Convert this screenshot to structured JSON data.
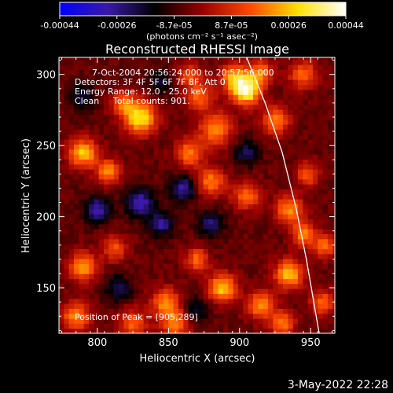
{
  "chart_data": {
    "type": "heatmap",
    "title": "Reconstructed RHESSI Image",
    "xlabel": "Heliocentric X (arcsec)",
    "ylabel": "Heliocentric Y (arcsec)",
    "xlim": [
      773,
      967
    ],
    "ylim": [
      118,
      312
    ],
    "x_ticks": [
      "800",
      "850",
      "900",
      "950"
    ],
    "y_ticks": [
      "150",
      "200",
      "250",
      "300"
    ],
    "colorbar": {
      "ticks": [
        "-0.00044",
        "-0.00026",
        "-8.7e-05",
        "8.7e-05",
        "0.00026",
        "0.00044"
      ],
      "unit": "(photons cm⁻² s⁻¹ asec⁻²)",
      "range": [
        -0.00044,
        0.00044
      ],
      "stops": [
        "#0000ff",
        "#3a1aa8",
        "#000000",
        "#9a0000",
        "#ff4a00",
        "#ffe000",
        "#ffffff"
      ]
    },
    "annotations": {
      "time": "7-Oct-2004 20:56:24.000 to 20:57:56.000",
      "detectors": "Detectors: 3F 4F 5F 6F 7F 8F, Att 0",
      "energy": "Energy Range: 12.0 - 25.0 keV",
      "algorithm": "Clean",
      "counts": "Total counts: 901.",
      "peak": "Position of Peak = [905,289]"
    },
    "peak": {
      "x": 905,
      "y": 289
    },
    "limb": [
      [
        905,
        312
      ],
      [
        918,
        280
      ],
      [
        930,
        245
      ],
      [
        940,
        205
      ],
      [
        947,
        170
      ],
      [
        953,
        135
      ],
      [
        956,
        118
      ]
    ],
    "sources": [
      {
        "x": 905,
        "y": 289,
        "amp": 1.0,
        "r": 7
      },
      {
        "x": 896,
        "y": 298,
        "amp": 0.6,
        "r": 7
      },
      {
        "x": 915,
        "y": 302,
        "amp": 0.55,
        "r": 6
      },
      {
        "x": 830,
        "y": 270,
        "amp": 0.85,
        "r": 8
      },
      {
        "x": 818,
        "y": 280,
        "amp": 0.45,
        "r": 6
      },
      {
        "x": 883,
        "y": 262,
        "amp": 0.6,
        "r": 8
      },
      {
        "x": 872,
        "y": 285,
        "amp": 0.5,
        "r": 7
      },
      {
        "x": 865,
        "y": 300,
        "amp": 0.4,
        "r": 6
      },
      {
        "x": 925,
        "y": 268,
        "amp": 0.55,
        "r": 7
      },
      {
        "x": 945,
        "y": 300,
        "amp": 0.5,
        "r": 7
      },
      {
        "x": 790,
        "y": 245,
        "amp": 0.75,
        "r": 7
      },
      {
        "x": 808,
        "y": 232,
        "amp": 0.6,
        "r": 6
      },
      {
        "x": 865,
        "y": 245,
        "amp": 0.55,
        "r": 7
      },
      {
        "x": 880,
        "y": 225,
        "amp": 0.55,
        "r": 7
      },
      {
        "x": 905,
        "y": 215,
        "amp": 0.5,
        "r": 7
      },
      {
        "x": 935,
        "y": 205,
        "amp": 0.6,
        "r": 7
      },
      {
        "x": 948,
        "y": 230,
        "amp": 0.45,
        "r": 6
      },
      {
        "x": 945,
        "y": 188,
        "amp": 0.55,
        "r": 6
      },
      {
        "x": 960,
        "y": 180,
        "amp": 0.5,
        "r": 6
      },
      {
        "x": 790,
        "y": 165,
        "amp": 0.65,
        "r": 7
      },
      {
        "x": 812,
        "y": 178,
        "amp": 0.45,
        "r": 6
      },
      {
        "x": 785,
        "y": 130,
        "amp": 0.6,
        "r": 7
      },
      {
        "x": 825,
        "y": 125,
        "amp": 0.5,
        "r": 7
      },
      {
        "x": 848,
        "y": 140,
        "amp": 0.6,
        "r": 7
      },
      {
        "x": 855,
        "y": 125,
        "amp": 0.55,
        "r": 7
      },
      {
        "x": 888,
        "y": 150,
        "amp": 0.75,
        "r": 7
      },
      {
        "x": 870,
        "y": 170,
        "amp": 0.5,
        "r": 6
      },
      {
        "x": 915,
        "y": 138,
        "amp": 0.6,
        "r": 7
      },
      {
        "x": 935,
        "y": 160,
        "amp": 0.75,
        "r": 7
      },
      {
        "x": 930,
        "y": 125,
        "amp": 0.55,
        "r": 6
      },
      {
        "x": 958,
        "y": 140,
        "amp": 0.5,
        "r": 6
      },
      {
        "x": 800,
        "y": 205,
        "amp": -0.6,
        "r": 6
      },
      {
        "x": 830,
        "y": 210,
        "amp": -0.6,
        "r": 7
      },
      {
        "x": 845,
        "y": 195,
        "amp": -0.5,
        "r": 6
      },
      {
        "x": 860,
        "y": 220,
        "amp": -0.55,
        "r": 6
      },
      {
        "x": 880,
        "y": 195,
        "amp": -0.45,
        "r": 6
      },
      {
        "x": 905,
        "y": 245,
        "amp": -0.4,
        "r": 6
      },
      {
        "x": 815,
        "y": 150,
        "amp": -0.4,
        "r": 6
      },
      {
        "x": 870,
        "y": 135,
        "amp": -0.35,
        "r": 6
      },
      {
        "x": 790,
        "y": 285,
        "amp": -0.35,
        "r": 6
      },
      {
        "x": 845,
        "y": 295,
        "amp": -0.3,
        "r": 6
      }
    ]
  },
  "footer": {
    "date": "3-May-2022 22:28"
  }
}
